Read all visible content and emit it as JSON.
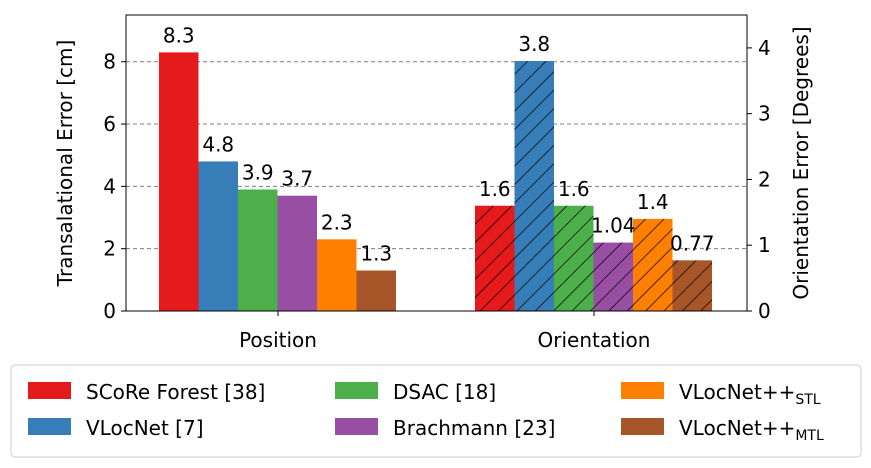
{
  "chart_data": {
    "type": "bar",
    "title": "",
    "categories": [
      "Position",
      "Orientation"
    ],
    "left_axis": {
      "label": "Transalational Error [cm]",
      "ylim": [
        0,
        9.5
      ],
      "ticks": [
        "0",
        "2",
        "4",
        "6",
        "8"
      ]
    },
    "right_axis": {
      "label": "Orientation Error [Degrees]",
      "ylim": [
        0,
        4.5
      ],
      "ticks": [
        "0",
        "1",
        "2",
        "3",
        "4"
      ]
    },
    "grid": "y-dashed",
    "legend_position": "bottom",
    "series": [
      {
        "name": "SCoRe Forest [38]",
        "base": "SCoRe Forest [38]",
        "sub": "",
        "color": "#e41a1c",
        "position": 8.3,
        "orientation": 1.6,
        "position_label": "8.3",
        "orientation_label": "1.6"
      },
      {
        "name": "VLocNet [7]",
        "base": "VLocNet [7]",
        "sub": "",
        "color": "#377eb8",
        "position": 4.8,
        "orientation": 3.8,
        "position_label": "4.8",
        "orientation_label": "3.8"
      },
      {
        "name": "DSAC [18]",
        "base": "DSAC [18]",
        "sub": "",
        "color": "#4daf4a",
        "position": 3.9,
        "orientation": 1.6,
        "position_label": "3.9",
        "orientation_label": "1.6"
      },
      {
        "name": "Brachmann [23]",
        "base": "Brachmann [23]",
        "sub": "",
        "color": "#984ea3",
        "position": 3.7,
        "orientation": 1.04,
        "position_label": "3.7",
        "orientation_label": "1.04"
      },
      {
        "name": "VLocNet++STL",
        "base": "VLocNet++",
        "sub": "STL",
        "color": "#ff7f00",
        "position": 2.3,
        "orientation": 1.4,
        "position_label": "2.3",
        "orientation_label": "1.4"
      },
      {
        "name": "VLocNet++MTL",
        "base": "VLocNet++",
        "sub": "MTL",
        "color": "#a65628",
        "position": 1.3,
        "orientation": 0.77,
        "position_label": "1.3",
        "orientation_label": "0.77"
      }
    ]
  }
}
